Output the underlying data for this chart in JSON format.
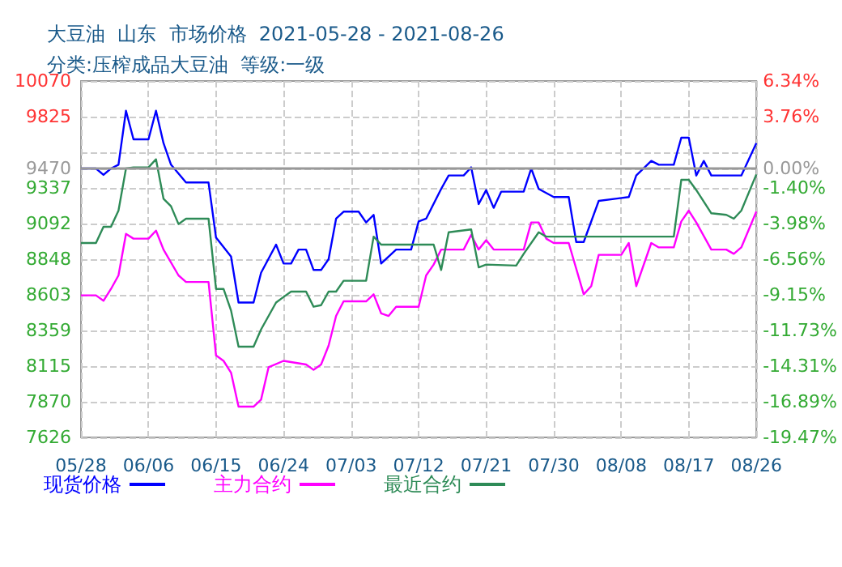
{
  "chart_data": {
    "type": "line",
    "title": "大豆油  山东  市场价格  2021-05-28 - 2021-08-26",
    "subtitle": "分类:压榨成品大豆油  等级:一级",
    "series": [
      {
        "name": "现货价格",
        "color": "#0000ff",
        "x": [
          "2021-05-28",
          "2021-05-30",
          "2021-05-31",
          "2021-06-01",
          "2021-06-02",
          "2021-06-03",
          "2021-06-04",
          "2021-06-06",
          "2021-06-07",
          "2021-06-08",
          "2021-06-09",
          "2021-06-11",
          "2021-06-14",
          "2021-06-15",
          "2021-06-17",
          "2021-06-18",
          "2021-06-20",
          "2021-06-21",
          "2021-06-23",
          "2021-06-24",
          "2021-06-25",
          "2021-06-26",
          "2021-06-27",
          "2021-06-28",
          "2021-06-29",
          "2021-06-30",
          "2021-07-01",
          "2021-07-02",
          "2021-07-04",
          "2021-07-05",
          "2021-07-06",
          "2021-07-07",
          "2021-07-09",
          "2021-07-11",
          "2021-07-12",
          "2021-07-13",
          "2021-07-15",
          "2021-07-16",
          "2021-07-18",
          "2021-07-19",
          "2021-07-20",
          "2021-07-21",
          "2021-07-22",
          "2021-07-23",
          "2021-07-26",
          "2021-07-27",
          "2021-07-28",
          "2021-07-30",
          "2021-08-01",
          "2021-08-02",
          "2021-08-03",
          "2021-08-05",
          "2021-08-09",
          "2021-08-10",
          "2021-08-12",
          "2021-08-13",
          "2021-08-15",
          "2021-08-16",
          "2021-08-17",
          "2021-08-18",
          "2021-08-19",
          "2021-08-20",
          "2021-08-24",
          "2021-08-26"
        ],
        "values": [
          9470,
          9470,
          9426,
          9470,
          9496,
          9866,
          9670,
          9670,
          9866,
          9644,
          9496,
          9374,
          9374,
          8996,
          8866,
          8551,
          8551,
          8755,
          8948,
          8818,
          8818,
          8914,
          8914,
          8774,
          8774,
          8848,
          9126,
          9174,
          9174,
          9100,
          9152,
          8818,
          8914,
          8914,
          9107,
          9126,
          9330,
          9422,
          9422,
          9478,
          9226,
          9322,
          9200,
          9311,
          9311,
          9470,
          9330,
          9274,
          9274,
          8966,
          8966,
          9248,
          9274,
          9422,
          9522,
          9496,
          9496,
          9681,
          9681,
          9422,
          9522,
          9422,
          9422,
          9644
        ]
      },
      {
        "name": "主力合约",
        "color": "#ff00ff",
        "x": [
          "2021-05-28",
          "2021-05-30",
          "2021-05-31",
          "2021-06-01",
          "2021-06-02",
          "2021-06-03",
          "2021-06-04",
          "2021-06-06",
          "2021-06-07",
          "2021-06-08",
          "2021-06-10",
          "2021-06-11",
          "2021-06-14",
          "2021-06-15",
          "2021-06-16",
          "2021-06-17",
          "2021-06-18",
          "2021-06-20",
          "2021-06-21",
          "2021-06-22",
          "2021-06-24",
          "2021-06-27",
          "2021-06-28",
          "2021-06-29",
          "2021-06-30",
          "2021-07-01",
          "2021-07-02",
          "2021-07-05",
          "2021-07-06",
          "2021-07-07",
          "2021-07-08",
          "2021-07-09",
          "2021-07-12",
          "2021-07-13",
          "2021-07-14",
          "2021-07-15",
          "2021-07-18",
          "2021-07-19",
          "2021-07-20",
          "2021-07-21",
          "2021-07-22",
          "2021-07-26",
          "2021-07-27",
          "2021-07-28",
          "2021-07-29",
          "2021-07-30",
          "2021-08-01",
          "2021-08-03",
          "2021-08-04",
          "2021-08-05",
          "2021-08-08",
          "2021-08-09",
          "2021-08-10",
          "2021-08-12",
          "2021-08-13",
          "2021-08-15",
          "2021-08-16",
          "2021-08-17",
          "2021-08-18",
          "2021-08-20",
          "2021-08-22",
          "2021-08-23",
          "2021-08-24",
          "2021-08-26"
        ],
        "values": [
          8600,
          8600,
          8563,
          8644,
          8737,
          9022,
          8989,
          8989,
          9044,
          8914,
          8737,
          8692,
          8692,
          8188,
          8151,
          8070,
          7837,
          7837,
          7885,
          8107,
          8151,
          8126,
          8089,
          8126,
          8255,
          8459,
          8559,
          8559,
          8607,
          8477,
          8459,
          8522,
          8522,
          8737,
          8811,
          8914,
          8914,
          9015,
          8914,
          8978,
          8914,
          8914,
          9100,
          9100,
          8989,
          8959,
          8959,
          8607,
          8663,
          8878,
          8878,
          8959,
          8663,
          8959,
          8929,
          8929,
          9107,
          9181,
          9100,
          8914,
          8914,
          8885,
          8929,
          9174
        ]
      },
      {
        "name": "最近合约",
        "color": "#2e8b57",
        "x": [
          "2021-05-28",
          "2021-05-30",
          "2021-05-31",
          "2021-06-01",
          "2021-06-02",
          "2021-06-03",
          "2021-06-04",
          "2021-06-06",
          "2021-06-07",
          "2021-06-08",
          "2021-06-09",
          "2021-06-10",
          "2021-06-11",
          "2021-06-14",
          "2021-06-15",
          "2021-06-16",
          "2021-06-17",
          "2021-06-18",
          "2021-06-20",
          "2021-06-21",
          "2021-06-23",
          "2021-06-24",
          "2021-06-25",
          "2021-06-27",
          "2021-06-28",
          "2021-06-29",
          "2021-06-30",
          "2021-07-01",
          "2021-07-02",
          "2021-07-05",
          "2021-07-06",
          "2021-07-07",
          "2021-07-14",
          "2021-07-15",
          "2021-07-16",
          "2021-07-19",
          "2021-07-20",
          "2021-07-21",
          "2021-07-25",
          "2021-07-26",
          "2021-07-28",
          "2021-07-29",
          "2021-08-15",
          "2021-08-16",
          "2021-08-17",
          "2021-08-18",
          "2021-08-20",
          "2021-08-22",
          "2021-08-23",
          "2021-08-24",
          "2021-08-26"
        ],
        "values": [
          8959,
          8959,
          9070,
          9070,
          9181,
          9470,
          9478,
          9478,
          9533,
          9263,
          9211,
          9089,
          9126,
          9126,
          8644,
          8644,
          8496,
          8248,
          8248,
          8366,
          8551,
          8589,
          8626,
          8626,
          8522,
          8533,
          8626,
          8626,
          8700,
          8700,
          9003,
          8948,
          8948,
          8774,
          9033,
          9052,
          8792,
          8811,
          8804,
          8885,
          9033,
          9003,
          9003,
          9392,
          9392,
          9322,
          9163,
          9152,
          9126,
          9181,
          9429
        ]
      }
    ],
    "xlim": [
      "2021-05-28",
      "2021-08-26"
    ],
    "xticks": [
      {
        "value": "2021-05-28",
        "label": "05/28"
      },
      {
        "value": "2021-06-06",
        "label": "06/06"
      },
      {
        "value": "2021-06-15",
        "label": "06/15"
      },
      {
        "value": "2021-06-24",
        "label": "06/24"
      },
      {
        "value": "2021-07-03",
        "label": "07/03"
      },
      {
        "value": "2021-07-12",
        "label": "07/12"
      },
      {
        "value": "2021-07-21",
        "label": "07/21"
      },
      {
        "value": "2021-07-30",
        "label": "07/30"
      },
      {
        "value": "2021-08-08",
        "label": "08/08"
      },
      {
        "value": "2021-08-17",
        "label": "08/17"
      },
      {
        "value": "2021-08-26",
        "label": "08/26"
      }
    ],
    "ylim": [
      7626,
      10070
    ],
    "yticks": [
      7626,
      7870,
      8115,
      8359,
      8603,
      8848,
      9092,
      9337,
      9470,
      {
        "value": 9581,
        "label": null
      },
      9825,
      10070
    ],
    "y2lim": [
      -19.47,
      6.34
    ],
    "y2ticks": [
      {
        "value": -19.47,
        "label": "-19.47%"
      },
      {
        "value": -16.89,
        "label": "-16.89%"
      },
      {
        "value": -14.31,
        "label": "-14.31%"
      },
      {
        "value": -11.73,
        "label": "-11.73%"
      },
      {
        "value": -9.15,
        "label": "-9.15%"
      },
      {
        "value": -6.56,
        "label": "-6.56%"
      },
      {
        "value": -3.98,
        "label": "-3.98%"
      },
      {
        "value": -1.4,
        "label": "-1.40%"
      },
      {
        "value": 0,
        "label": "0.00%"
      },
      {
        "value": 3.76,
        "label": "3.76%"
      },
      {
        "value": 6.34,
        "label": "6.34%"
      }
    ],
    "ref_lines": [
      {
        "axis": "y",
        "value": 9470,
        "color": "#999999"
      }
    ],
    "grid": true,
    "legend": "bottom",
    "marker": "none",
    "line_style": "solid"
  }
}
